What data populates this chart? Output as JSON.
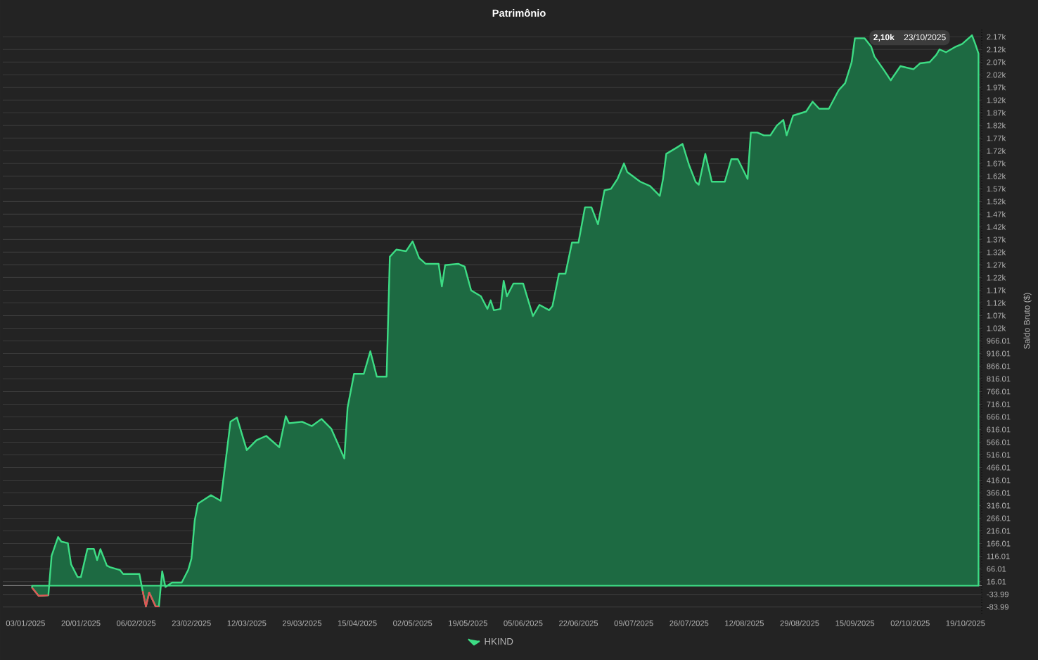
{
  "chart_data": {
    "type": "area",
    "title": "Patrimônio",
    "ylabel": "Saldo Bruto ($)",
    "x": [
      "2025-01-05",
      "2025-01-07",
      "2025-01-10",
      "2025-01-11",
      "2025-01-13",
      "2025-01-14",
      "2025-01-16",
      "2025-01-17",
      "2025-01-19",
      "2025-01-20",
      "2025-01-22",
      "2025-01-24",
      "2025-01-25",
      "2025-01-26",
      "2025-01-28",
      "2025-01-29",
      "2025-02-01",
      "2025-02-02",
      "2025-02-07",
      "2025-02-08",
      "2025-02-09",
      "2025-02-10",
      "2025-02-12",
      "2025-02-13",
      "2025-02-14",
      "2025-02-15",
      "2025-02-17",
      "2025-02-20",
      "2025-02-22",
      "2025-02-23",
      "2025-02-24",
      "2025-02-25",
      "2025-03-01",
      "2025-03-04",
      "2025-03-07",
      "2025-03-09",
      "2025-03-12",
      "2025-03-15",
      "2025-03-18",
      "2025-03-22",
      "2025-03-24",
      "2025-03-25",
      "2025-03-29",
      "2025-04-01",
      "2025-04-04",
      "2025-04-07",
      "2025-04-11",
      "2025-04-12",
      "2025-04-14",
      "2025-04-17",
      "2025-04-19",
      "2025-04-21",
      "2025-04-24",
      "2025-04-25",
      "2025-04-27",
      "2025-04-30",
      "2025-05-02",
      "2025-05-04",
      "2025-05-06",
      "2025-05-10",
      "2025-05-11",
      "2025-05-12",
      "2025-05-16",
      "2025-05-18",
      "2025-05-20",
      "2025-05-23",
      "2025-05-25",
      "2025-05-26",
      "2025-05-27",
      "2025-05-29",
      "2025-05-30",
      "2025-05-31",
      "2025-06-02",
      "2025-06-05",
      "2025-06-08",
      "2025-06-10",
      "2025-06-13",
      "2025-06-14",
      "2025-06-16",
      "2025-06-18",
      "2025-06-20",
      "2025-06-22",
      "2025-06-24",
      "2025-06-26",
      "2025-06-28",
      "2025-06-30",
      "2025-07-02",
      "2025-07-04",
      "2025-07-06",
      "2025-07-07",
      "2025-07-11",
      "2025-07-14",
      "2025-07-17",
      "2025-07-18",
      "2025-07-19",
      "2025-07-22",
      "2025-07-24",
      "2025-07-26",
      "2025-07-28",
      "2025-07-29",
      "2025-07-31",
      "2025-08-02",
      "2025-08-06",
      "2025-08-08",
      "2025-08-10",
      "2025-08-13",
      "2025-08-14",
      "2025-08-16",
      "2025-08-18",
      "2025-08-20",
      "2025-08-22",
      "2025-08-24",
      "2025-08-25",
      "2025-08-27",
      "2025-08-31",
      "2025-09-02",
      "2025-09-04",
      "2025-09-07",
      "2025-09-10",
      "2025-09-12",
      "2025-09-14",
      "2025-09-15",
      "2025-09-18",
      "2025-09-20",
      "2025-09-21",
      "2025-09-24",
      "2025-09-26",
      "2025-09-29",
      "2025-10-03",
      "2025-10-05",
      "2025-10-08",
      "2025-10-10",
      "2025-10-11",
      "2025-10-13",
      "2025-10-16",
      "2025-10-18",
      "2025-10-21",
      "2025-10-22",
      "2025-10-23"
    ],
    "series": [
      {
        "name": "HKIND",
        "color": "#3ddc84",
        "values": [
          -8,
          -40,
          -38,
          118,
          192,
          174,
          168,
          84,
          34,
          34,
          145,
          145,
          101,
          144,
          79,
          73,
          62,
          46,
          46,
          -21,
          -82,
          -27,
          -82,
          -82,
          57,
          -5,
          12,
          12,
          62,
          107,
          257,
          324,
          357,
          335,
          647,
          663,
          535,
          574,
          591,
          546,
          669,
          641,
          647,
          630,
          658,
          619,
          502,
          702,
          836,
          836,
          925,
          825,
          825,
          1298,
          1326,
          1320,
          1359,
          1293,
          1270,
          1270,
          1181,
          1265,
          1270,
          1259,
          1165,
          1142,
          1092,
          1126,
          1087,
          1092,
          1203,
          1142,
          1192,
          1192,
          1064,
          1108,
          1087,
          1103,
          1231,
          1231,
          1354,
          1354,
          1493,
          1493,
          1426,
          1560,
          1566,
          1605,
          1666,
          1632,
          1594,
          1577,
          1538,
          1605,
          1704,
          1727,
          1743,
          1660,
          1594,
          1582,
          1704,
          1594,
          1594,
          1683,
          1683,
          1605,
          1788,
          1788,
          1777,
          1777,
          1816,
          1838,
          1777,
          1855,
          1871,
          1910,
          1882,
          1882,
          1955,
          1983,
          2066,
          2160,
          2160,
          2127,
          2088,
          2033,
          1994,
          2050,
          2038,
          2061,
          2066,
          2094,
          2116,
          2105,
          2127,
          2138,
          2172,
          2138,
          2100
        ]
      },
      {
        "type": "line",
        "color": "#e05555",
        "x": [
          "2025-01-05",
          "2025-01-07",
          "2025-01-10",
          "2025-02-01",
          "2025-02-08",
          "2025-02-09",
          "2025-02-10",
          "2025-02-12",
          "2025-02-13"
        ],
        "values": [
          -8,
          -40,
          -38,
          null,
          -21,
          -82,
          -27,
          -82,
          -82
        ]
      }
    ],
    "xlim": [
      "2024-12-27",
      "2025-10-24"
    ],
    "xticks": [
      {
        "value": "2025-01-03",
        "label": "03/01/2025"
      },
      {
        "value": "2025-01-20",
        "label": "20/01/2025"
      },
      {
        "value": "2025-02-06",
        "label": "06/02/2025"
      },
      {
        "value": "2025-02-23",
        "label": "23/02/2025"
      },
      {
        "value": "2025-03-12",
        "label": "12/03/2025"
      },
      {
        "value": "2025-03-29",
        "label": "29/03/2025"
      },
      {
        "value": "2025-04-15",
        "label": "15/04/2025"
      },
      {
        "value": "2025-05-02",
        "label": "02/05/2025"
      },
      {
        "value": "2025-05-19",
        "label": "19/05/2025"
      },
      {
        "value": "2025-06-05",
        "label": "05/06/2025"
      },
      {
        "value": "2025-06-22",
        "label": "22/06/2025"
      },
      {
        "value": "2025-07-09",
        "label": "09/07/2025"
      },
      {
        "value": "2025-07-26",
        "label": "26/07/2025"
      },
      {
        "value": "2025-08-12",
        "label": "12/08/2025"
      },
      {
        "value": "2025-08-29",
        "label": "29/08/2025"
      },
      {
        "value": "2025-09-15",
        "label": "15/09/2025"
      },
      {
        "value": "2025-10-02",
        "label": "02/10/2025"
      },
      {
        "value": "2025-10-19",
        "label": "19/10/2025"
      }
    ],
    "ylim": [
      -110,
      2200
    ],
    "yticks": [
      -83.99,
      -33.99,
      16.01,
      66.01,
      116.01,
      166.01,
      216.01,
      266.01,
      316.01,
      366.01,
      416.01,
      466.01,
      516.01,
      566.01,
      616.01,
      666.01,
      716.01,
      766.01,
      816.01,
      866.01,
      916.01,
      966.01,
      {
        "value": 1016.01,
        "label": "1.02k"
      },
      {
        "value": 1066.01,
        "label": "1.07k"
      },
      {
        "value": 1116.01,
        "label": "1.12k"
      },
      {
        "value": 1166.01,
        "label": "1.17k"
      },
      {
        "value": 1216.01,
        "label": "1.22k"
      },
      {
        "value": 1266.01,
        "label": "1.27k"
      },
      {
        "value": 1316.01,
        "label": "1.32k"
      },
      {
        "value": 1366.01,
        "label": "1.37k"
      },
      {
        "value": 1416.01,
        "label": "1.42k"
      },
      {
        "value": 1466.01,
        "label": "1.47k"
      },
      {
        "value": 1516.01,
        "label": "1.52k"
      },
      {
        "value": 1566.01,
        "label": "1.57k"
      },
      {
        "value": 1616.01,
        "label": "1.62k"
      },
      {
        "value": 1666.01,
        "label": "1.67k"
      },
      {
        "value": 1716.01,
        "label": "1.72k"
      },
      {
        "value": 1766.01,
        "label": "1.77k"
      },
      {
        "value": 1816.01,
        "label": "1.82k"
      },
      {
        "value": 1866.01,
        "label": "1.87k"
      },
      {
        "value": 1916.01,
        "label": "1.92k"
      },
      {
        "value": 1966.01,
        "label": "1.97k"
      },
      {
        "value": 2016.01,
        "label": "2.02k"
      },
      {
        "value": 2066.01,
        "label": "2.07k"
      },
      {
        "value": 2116.01,
        "label": "2.12k"
      },
      {
        "value": 2166.01,
        "label": "2.17k"
      }
    ],
    "ref_lines": [
      {
        "axis": "y",
        "value": 0,
        "color": "#8a8a8a"
      }
    ],
    "grid": "y",
    "legend": "bottom",
    "annotations": [
      "2,10k",
      "23/10/2025"
    ]
  }
}
